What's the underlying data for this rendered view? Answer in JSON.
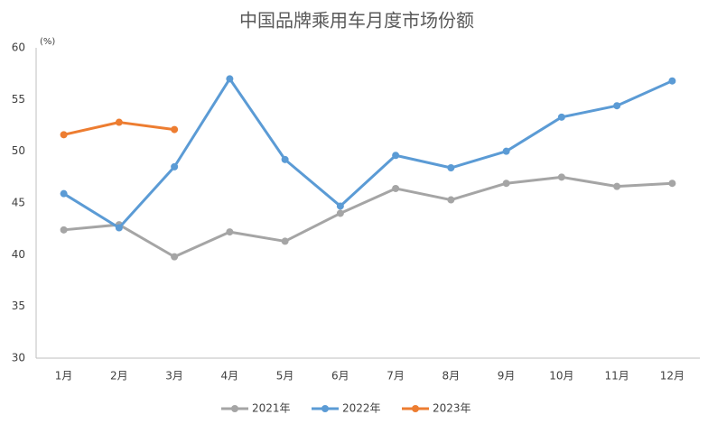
{
  "chart_data": {
    "type": "line",
    "title": "中国品牌乘用车月度市场份额",
    "ylabel": "(%)",
    "categories": [
      "1月",
      "2月",
      "3月",
      "4月",
      "5月",
      "6月",
      "7月",
      "8月",
      "9月",
      "10月",
      "11月",
      "12月"
    ],
    "series": [
      {
        "name": "2021年",
        "color": "#a5a5a5",
        "values": [
          42.4,
          42.9,
          39.8,
          42.2,
          41.3,
          44.0,
          46.4,
          45.3,
          46.9,
          47.5,
          46.6,
          46.9
        ]
      },
      {
        "name": "2022年",
        "color": "#5b9bd5",
        "values": [
          45.9,
          42.6,
          48.5,
          57.0,
          49.2,
          44.7,
          49.6,
          48.4,
          50.0,
          53.3,
          54.4,
          56.8
        ]
      },
      {
        "name": "2023年",
        "color": "#ed7d31",
        "values": [
          51.6,
          52.8,
          52.1,
          null,
          null,
          null,
          null,
          null,
          null,
          null,
          null,
          null
        ]
      }
    ],
    "ylim": [
      30,
      60
    ],
    "yticks": [
      30,
      35,
      40,
      45,
      50,
      55,
      60
    ],
    "grid": false,
    "legend": "bottom"
  }
}
